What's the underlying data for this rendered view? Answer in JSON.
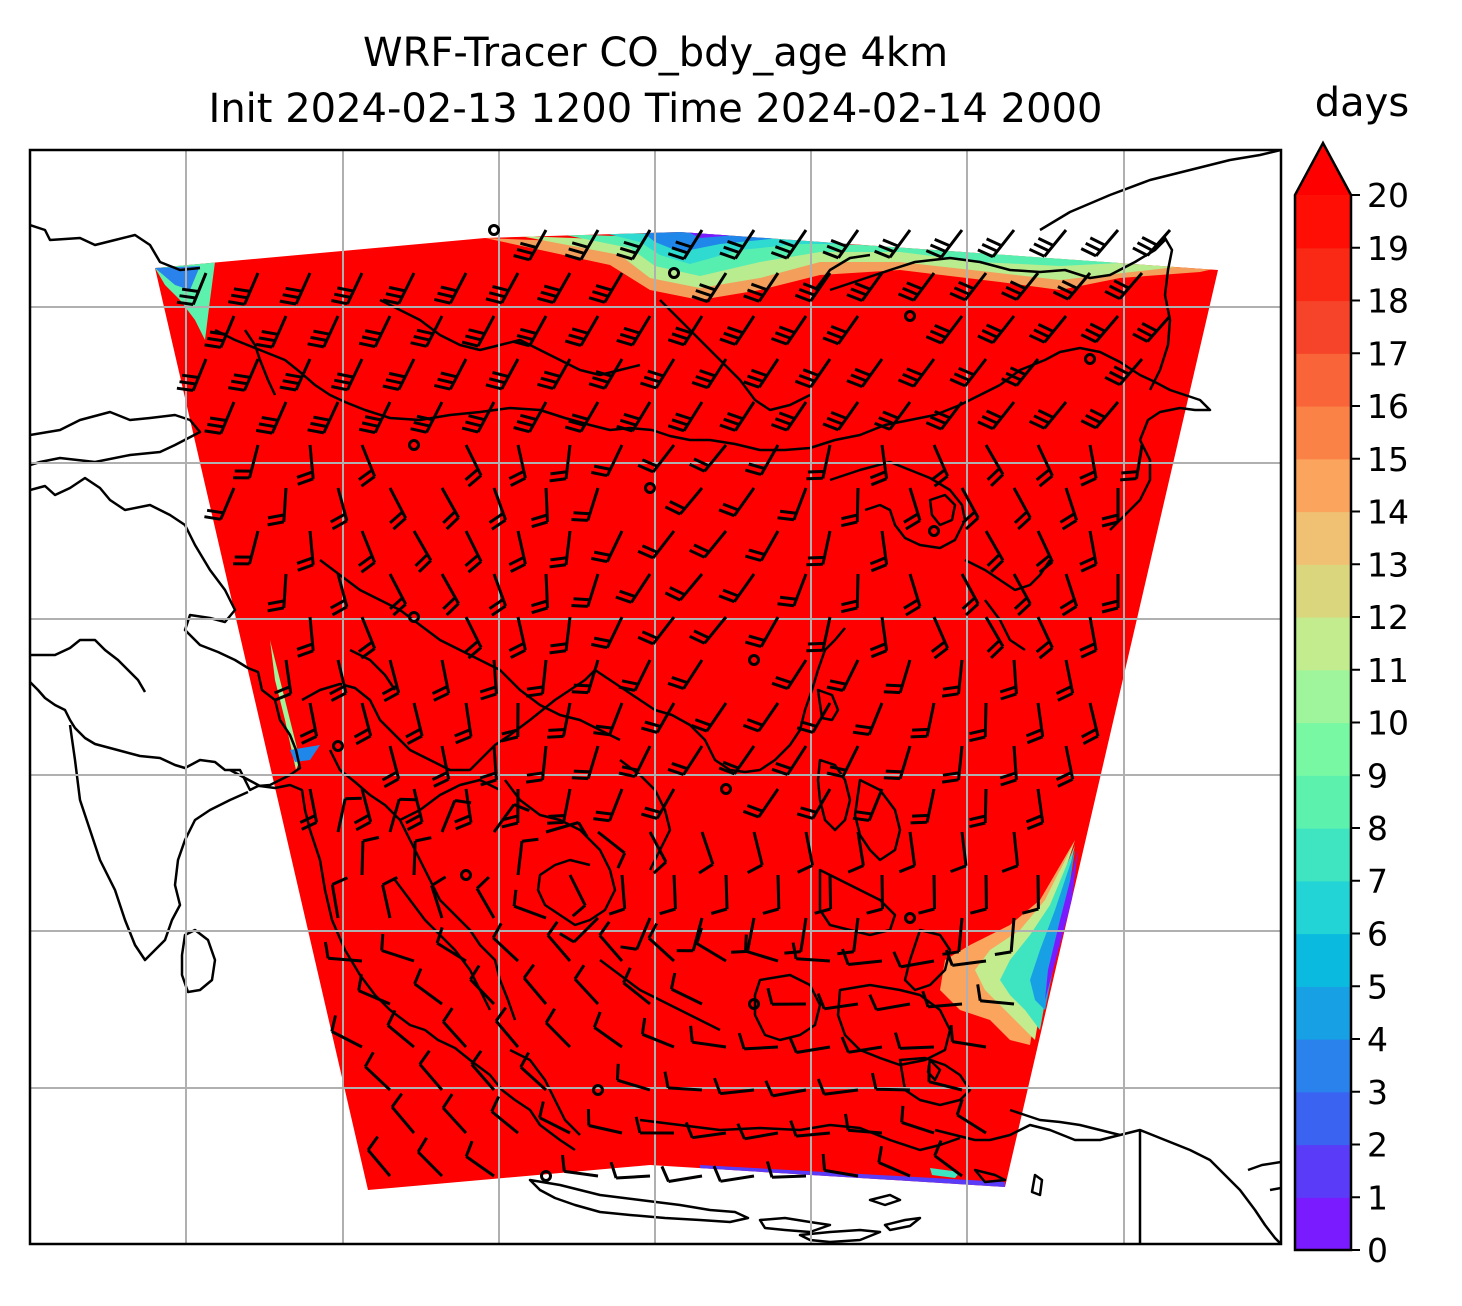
{
  "chart_data": {
    "type": "heatmap",
    "title": "WRF-Tracer CO_bdy_age 4km",
    "subtitle": "Init 2024-02-13 1200 Time 2024-02-14 2000",
    "colorbar": {
      "label": "days",
      "min": 0,
      "max": 20,
      "extend": "max",
      "ticks": [
        "0",
        "1",
        "2",
        "3",
        "4",
        "5",
        "6",
        "7",
        "8",
        "9",
        "10",
        "11",
        "12",
        "13",
        "14",
        "15",
        "16",
        "17",
        "18",
        "19",
        "20"
      ],
      "colors": [
        "#7a1bff",
        "#5a3cf8",
        "#3b63f2",
        "#2a83ec",
        "#18a0e5",
        "#0bbbdf",
        "#22d4d6",
        "#3ee5c0",
        "#5cf2ad",
        "#79f8a4",
        "#9ef59b",
        "#c2ec8d",
        "#dad67e",
        "#f0c073",
        "#fba45e",
        "#fb8247",
        "#f96439",
        "#f54429",
        "#f92915",
        "#ff0e05",
        "#ff0000"
      ]
    },
    "grid": true,
    "field_summary": "Most of the domain saturated at ≥20 days; younger air (0–12 days) along the northern edge, the western edge and the south-eastern edge",
    "overlays": [
      "coastlines",
      "wind-barbs",
      "lat-lon-gridlines"
    ]
  }
}
